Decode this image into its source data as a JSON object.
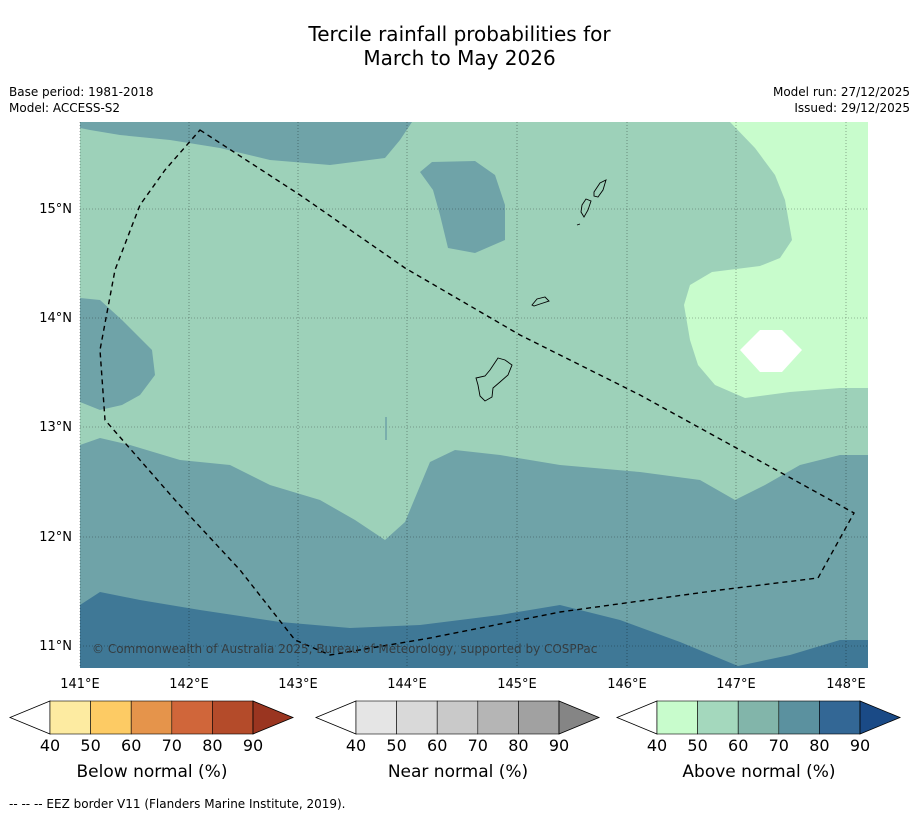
{
  "title": {
    "line1": "Tercile rainfall probabilities for",
    "line2": "March to May 2026"
  },
  "meta": {
    "base_period": "Base period: 1981-2018",
    "model": "Model: ACCESS-S2",
    "model_run": "Model run: 27/12/2025",
    "issued": "Issued: 29/12/2025"
  },
  "map": {
    "copyright": "© Commonwealth of Australia 2025, Bureau of Meteorology, supported by COSPPac",
    "lon_ticks": [
      "141°E",
      "142°E",
      "143°E",
      "144°E",
      "145°E",
      "146°E",
      "147°E",
      "148°E"
    ],
    "lat_ticks": [
      "15°N",
      "14°N",
      "13°N",
      "12°N",
      "11°N"
    ],
    "colors": {
      "above_40_50": "#c8fccc",
      "above_50_60": "#9dd1b9",
      "above_60_70": "#6fa3a8",
      "above_70_80": "#3f7896",
      "no_data_white": "#ffffff",
      "eez_border": "#000000"
    }
  },
  "colorbars": [
    {
      "label": "Below normal (%)",
      "colors": [
        "#ffffff",
        "#fdeba1",
        "#fdcb64",
        "#e5944b",
        "#d0663a",
        "#b44b2a",
        "#9a3520"
      ],
      "ticks": [
        "40",
        "50",
        "60",
        "70",
        "80",
        "90"
      ]
    },
    {
      "label": "Near normal (%)",
      "colors": [
        "#ffffff",
        "#e5e5e5",
        "#d9d9d9",
        "#c9c9c9",
        "#b5b5b5",
        "#a1a1a1",
        "#858585"
      ],
      "ticks": [
        "40",
        "50",
        "60",
        "70",
        "80",
        "90"
      ]
    },
    {
      "label": "Above normal (%)",
      "colors": [
        "#ffffff",
        "#c8fccc",
        "#a4d8bd",
        "#82b5aa",
        "#5b919f",
        "#336795",
        "#1a4a86"
      ],
      "ticks": [
        "40",
        "50",
        "60",
        "70",
        "80",
        "90"
      ]
    }
  ],
  "footer": "--  --  -- EEZ border V11 (Flanders Marine Institute, 2019)."
}
